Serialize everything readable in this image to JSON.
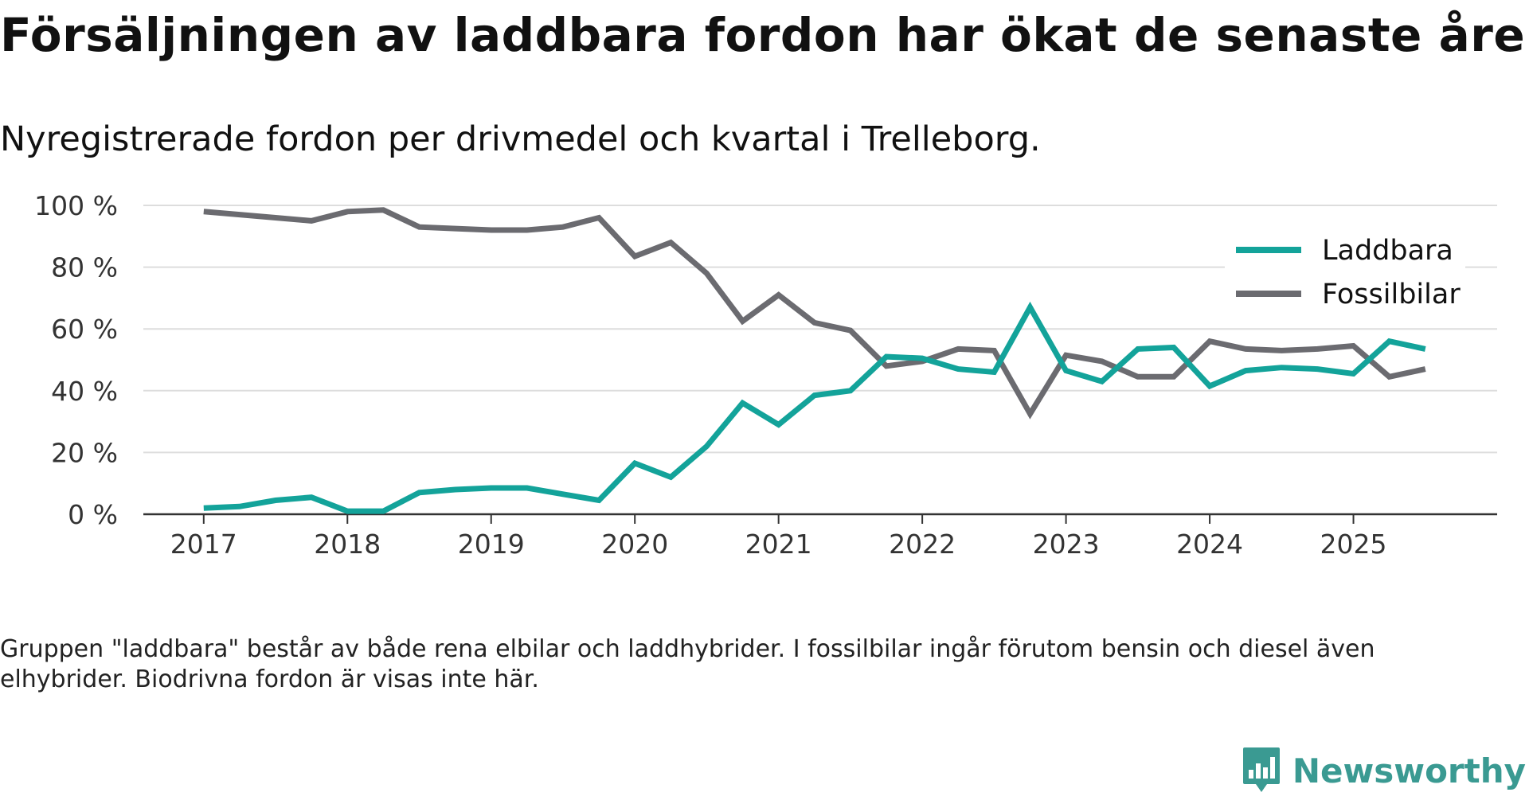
{
  "title": "Försäljningen av laddbara fordon har ökat de senaste åren",
  "subtitle": "Nyregistrerade fordon per drivmedel och kvartal i Trelleborg.",
  "note": "Gruppen \"laddbara\" består av både rena elbilar och laddhybrider. I fossilbilar ingår förutom bensin och diesel även elhybrider. Biodrivna fordon är visas inte här.",
  "brand": {
    "name": "Newsworthy",
    "icon": "newsworthy-logo-icon",
    "color": "#3a9a92"
  },
  "colors": {
    "laddbara": "#13a39a",
    "fossil": "#6b6b70",
    "grid": "#dddddd",
    "axis": "#333333"
  },
  "chart_data": {
    "type": "line",
    "title": "Försäljningen av laddbara fordon har ökat de senaste åren",
    "xlabel": "",
    "ylabel": "",
    "ylim": [
      0,
      100
    ],
    "y_ticks": [
      0,
      20,
      40,
      60,
      80,
      100
    ],
    "y_tick_labels": [
      "0 %",
      "20 %",
      "40 %",
      "60 %",
      "80 %",
      "100 %"
    ],
    "x_ticks": [
      2017,
      2018,
      2019,
      2020,
      2021,
      2022,
      2023,
      2024,
      2025
    ],
    "x_tick_labels": [
      "2017",
      "2018",
      "2019",
      "2020",
      "2021",
      "2022",
      "2023",
      "2024",
      "2025"
    ],
    "grid": true,
    "legend": "top-right",
    "x": [
      2017.0,
      2017.25,
      2017.5,
      2017.75,
      2018.0,
      2018.25,
      2018.5,
      2018.75,
      2019.0,
      2019.25,
      2019.5,
      2019.75,
      2020.0,
      2020.25,
      2020.5,
      2020.75,
      2021.0,
      2021.25,
      2021.5,
      2021.75,
      2022.0,
      2022.25,
      2022.5,
      2022.75,
      2023.0,
      2023.25,
      2023.5,
      2023.75,
      2024.0,
      2024.25,
      2024.5,
      2024.75,
      2025.0,
      2025.25,
      2025.5
    ],
    "series": [
      {
        "name": "Laddbara",
        "color": "#13a39a",
        "values": [
          2,
          2.5,
          4.5,
          5.5,
          1,
          1,
          7,
          8,
          8.5,
          8.5,
          6.5,
          4.5,
          16.5,
          12,
          22,
          36,
          29,
          38.5,
          40,
          51,
          50.5,
          47,
          46,
          67,
          46.5,
          43,
          53.5,
          54,
          41.5,
          46.5,
          47.5,
          47,
          45.5,
          56,
          53.5
        ]
      },
      {
        "name": "Fossilbilar",
        "color": "#6b6b70",
        "values": [
          98,
          97,
          96,
          95,
          98,
          98.5,
          93,
          92.5,
          92,
          92,
          93,
          96,
          83.5,
          88,
          78,
          62.5,
          71,
          62,
          59.5,
          48,
          49.5,
          53.5,
          53,
          32.5,
          51.5,
          49.5,
          44.5,
          44.5,
          56,
          53.5,
          53,
          53.5,
          54.5,
          44.5,
          47
        ]
      }
    ]
  }
}
